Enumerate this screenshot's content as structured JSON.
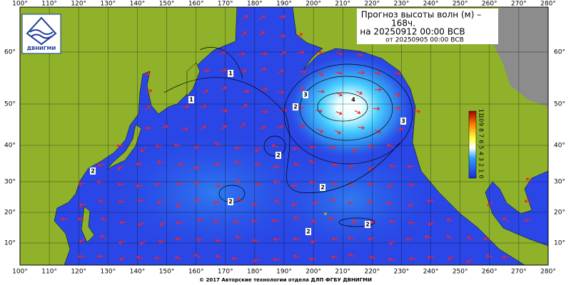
{
  "header": {
    "title": "Прогноз высоты волн (м) –",
    "lead": "168ч.",
    "valid": "на 20250912 00:00 ВСВ",
    "issued": "от 20250905 00:00 ВСВ"
  },
  "logo": {
    "label": "ДВНИГМИ"
  },
  "axes": {
    "longitudes": [
      "100°",
      "110°",
      "120°",
      "130°",
      "140°",
      "150°",
      "160°",
      "170°",
      "180°",
      "190°",
      "200°",
      "210°",
      "220°",
      "230°",
      "240°",
      "250°",
      "260°",
      "270°",
      "280°"
    ],
    "latitudes": [
      "60°",
      "50°",
      "40°",
      "30°",
      "20°",
      "10°"
    ]
  },
  "colorbar": {
    "labels": [
      "11",
      "10",
      "9",
      "8",
      "7",
      "6",
      "5",
      "4",
      "3",
      "2",
      "1",
      "0"
    ]
  },
  "contour_labels": [
    "1",
    "1",
    "3",
    "2",
    "4",
    "3",
    "2",
    "2",
    "2",
    "2",
    "2",
    "2"
  ],
  "footer": {
    "text": "© 2017 Авторские технологии отдела ДЛП ФГБУ ДВНИГМИ"
  }
}
